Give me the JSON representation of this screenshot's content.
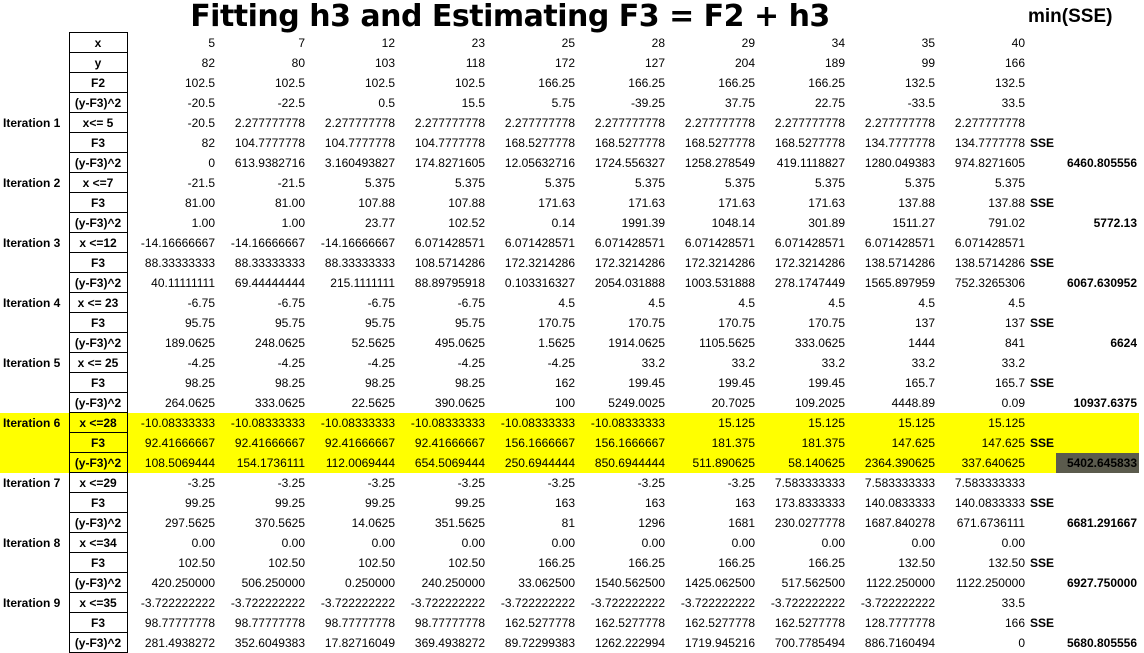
{
  "title": "Fitting h3 and Estimating F3 = F2 + h3",
  "subtitle": "min(SSE)",
  "sse_label": "SSE",
  "header_rows": [
    {
      "label": "x",
      "values": [
        "5",
        "7",
        "12",
        "23",
        "25",
        "28",
        "29",
        "34",
        "35",
        "40"
      ]
    },
    {
      "label": "y",
      "values": [
        "82",
        "80",
        "103",
        "118",
        "172",
        "127",
        "204",
        "189",
        "99",
        "166"
      ]
    },
    {
      "label": "F2",
      "values": [
        "102.5",
        "102.5",
        "102.5",
        "102.5",
        "166.25",
        "166.25",
        "166.25",
        "166.25",
        "132.5",
        "132.5"
      ]
    },
    {
      "label": "(y-F3)^2",
      "values": [
        "-20.5",
        "-22.5",
        "0.5",
        "15.5",
        "5.75",
        "-39.25",
        "37.75",
        "22.75",
        "-33.5",
        "33.5"
      ]
    }
  ],
  "iterations": [
    {
      "name": "Iteration 1",
      "split": "x<= 5",
      "h": [
        "-20.5",
        "2.277777778",
        "2.277777778",
        "2.277777778",
        "2.277777778",
        "2.277777778",
        "2.277777778",
        "2.277777778",
        "2.277777778",
        "2.277777778"
      ],
      "f3": [
        "82",
        "104.7777778",
        "104.7777778",
        "104.7777778",
        "168.5277778",
        "168.5277778",
        "168.5277778",
        "168.5277778",
        "134.7777778",
        "134.7777778"
      ],
      "err": [
        "0",
        "613.9382716",
        "3.160493827",
        "174.8271605",
        "12.05632716",
        "1724.556327",
        "1258.278549",
        "419.1118827",
        "1280.049383",
        "974.8271605"
      ],
      "sse": "6460.805556"
    },
    {
      "name": "Iteration 2",
      "split": "x <=7",
      "h": [
        "-21.5",
        "-21.5",
        "5.375",
        "5.375",
        "5.375",
        "5.375",
        "5.375",
        "5.375",
        "5.375",
        "5.375"
      ],
      "f3": [
        "81.00",
        "81.00",
        "107.88",
        "107.88",
        "171.63",
        "171.63",
        "171.63",
        "171.63",
        "137.88",
        "137.88"
      ],
      "err": [
        "1.00",
        "1.00",
        "23.77",
        "102.52",
        "0.14",
        "1991.39",
        "1048.14",
        "301.89",
        "1511.27",
        "791.02"
      ],
      "sse": "5772.13"
    },
    {
      "name": "Iteration 3",
      "split": "x <=12",
      "h": [
        "-14.16666667",
        "-14.16666667",
        "-14.16666667",
        "6.071428571",
        "6.071428571",
        "6.071428571",
        "6.071428571",
        "6.071428571",
        "6.071428571",
        "6.071428571"
      ],
      "f3": [
        "88.33333333",
        "88.33333333",
        "88.33333333",
        "108.5714286",
        "172.3214286",
        "172.3214286",
        "172.3214286",
        "172.3214286",
        "138.5714286",
        "138.5714286"
      ],
      "err": [
        "40.11111111",
        "69.44444444",
        "215.1111111",
        "88.89795918",
        "0.103316327",
        "2054.031888",
        "1003.531888",
        "278.1747449",
        "1565.897959",
        "752.3265306"
      ],
      "sse": "6067.630952"
    },
    {
      "name": "Iteration 4",
      "split": "x <= 23",
      "h": [
        "-6.75",
        "-6.75",
        "-6.75",
        "-6.75",
        "4.5",
        "4.5",
        "4.5",
        "4.5",
        "4.5",
        "4.5"
      ],
      "f3": [
        "95.75",
        "95.75",
        "95.75",
        "95.75",
        "170.75",
        "170.75",
        "170.75",
        "170.75",
        "137",
        "137"
      ],
      "err": [
        "189.0625",
        "248.0625",
        "52.5625",
        "495.0625",
        "1.5625",
        "1914.0625",
        "1105.5625",
        "333.0625",
        "1444",
        "841"
      ],
      "sse": "6624"
    },
    {
      "name": "Iteration 5",
      "split": "x <= 25",
      "h": [
        "-4.25",
        "-4.25",
        "-4.25",
        "-4.25",
        "-4.25",
        "33.2",
        "33.2",
        "33.2",
        "33.2",
        "33.2"
      ],
      "f3": [
        "98.25",
        "98.25",
        "98.25",
        "98.25",
        "162",
        "199.45",
        "199.45",
        "199.45",
        "165.7",
        "165.7"
      ],
      "err": [
        "264.0625",
        "333.0625",
        "22.5625",
        "390.0625",
        "100",
        "5249.0025",
        "20.7025",
        "109.2025",
        "4448.89",
        "0.09"
      ],
      "sse": "10937.6375"
    },
    {
      "name": "Iteration 6",
      "split": "x <=28",
      "highlight": true,
      "h": [
        "-10.08333333",
        "-10.08333333",
        "-10.08333333",
        "-10.08333333",
        "-10.08333333",
        "-10.08333333",
        "15.125",
        "15.125",
        "15.125",
        "15.125"
      ],
      "f3": [
        "92.41666667",
        "92.41666667",
        "92.41666667",
        "92.41666667",
        "156.1666667",
        "156.1666667",
        "181.375",
        "181.375",
        "147.625",
        "147.625"
      ],
      "err": [
        "108.5069444",
        "154.1736111",
        "112.0069444",
        "654.5069444",
        "250.6944444",
        "850.6944444",
        "511.890625",
        "58.140625",
        "2364.390625",
        "337.640625"
      ],
      "sse": "5402.645833"
    },
    {
      "name": "Iteration 7",
      "split": "x <=29",
      "h": [
        "-3.25",
        "-3.25",
        "-3.25",
        "-3.25",
        "-3.25",
        "-3.25",
        "-3.25",
        "7.583333333",
        "7.583333333",
        "7.583333333"
      ],
      "f3": [
        "99.25",
        "99.25",
        "99.25",
        "99.25",
        "163",
        "163",
        "163",
        "173.8333333",
        "140.0833333",
        "140.0833333"
      ],
      "err": [
        "297.5625",
        "370.5625",
        "14.0625",
        "351.5625",
        "81",
        "1296",
        "1681",
        "230.0277778",
        "1687.840278",
        "671.6736111"
      ],
      "sse": "6681.291667"
    },
    {
      "name": "Iteration 8",
      "split": "x <=34",
      "h": [
        "0.00",
        "0.00",
        "0.00",
        "0.00",
        "0.00",
        "0.00",
        "0.00",
        "0.00",
        "0.00",
        "0.00"
      ],
      "f3": [
        "102.50",
        "102.50",
        "102.50",
        "102.50",
        "166.25",
        "166.25",
        "166.25",
        "166.25",
        "132.50",
        "132.50"
      ],
      "err": [
        "420.250000",
        "506.250000",
        "0.250000",
        "240.250000",
        "33.062500",
        "1540.562500",
        "1425.062500",
        "517.562500",
        "1122.250000",
        "1122.250000"
      ],
      "sse": "6927.750000"
    },
    {
      "name": "Iteration 9",
      "split": "x <=35",
      "h": [
        "-3.722222222",
        "-3.722222222",
        "-3.722222222",
        "-3.722222222",
        "-3.722222222",
        "-3.722222222",
        "-3.722222222",
        "-3.722222222",
        "-3.722222222",
        "33.5"
      ],
      "f3": [
        "98.77777778",
        "98.77777778",
        "98.77777778",
        "98.77777778",
        "162.5277778",
        "162.5277778",
        "162.5277778",
        "162.5277778",
        "128.7777778",
        "166"
      ],
      "err": [
        "281.4938272",
        "352.6049383",
        "17.82716049",
        "369.4938272",
        "89.72299383",
        "1262.222994",
        "1719.945216",
        "700.7785494",
        "886.7160494",
        "0"
      ],
      "sse": "5680.805556"
    }
  ]
}
